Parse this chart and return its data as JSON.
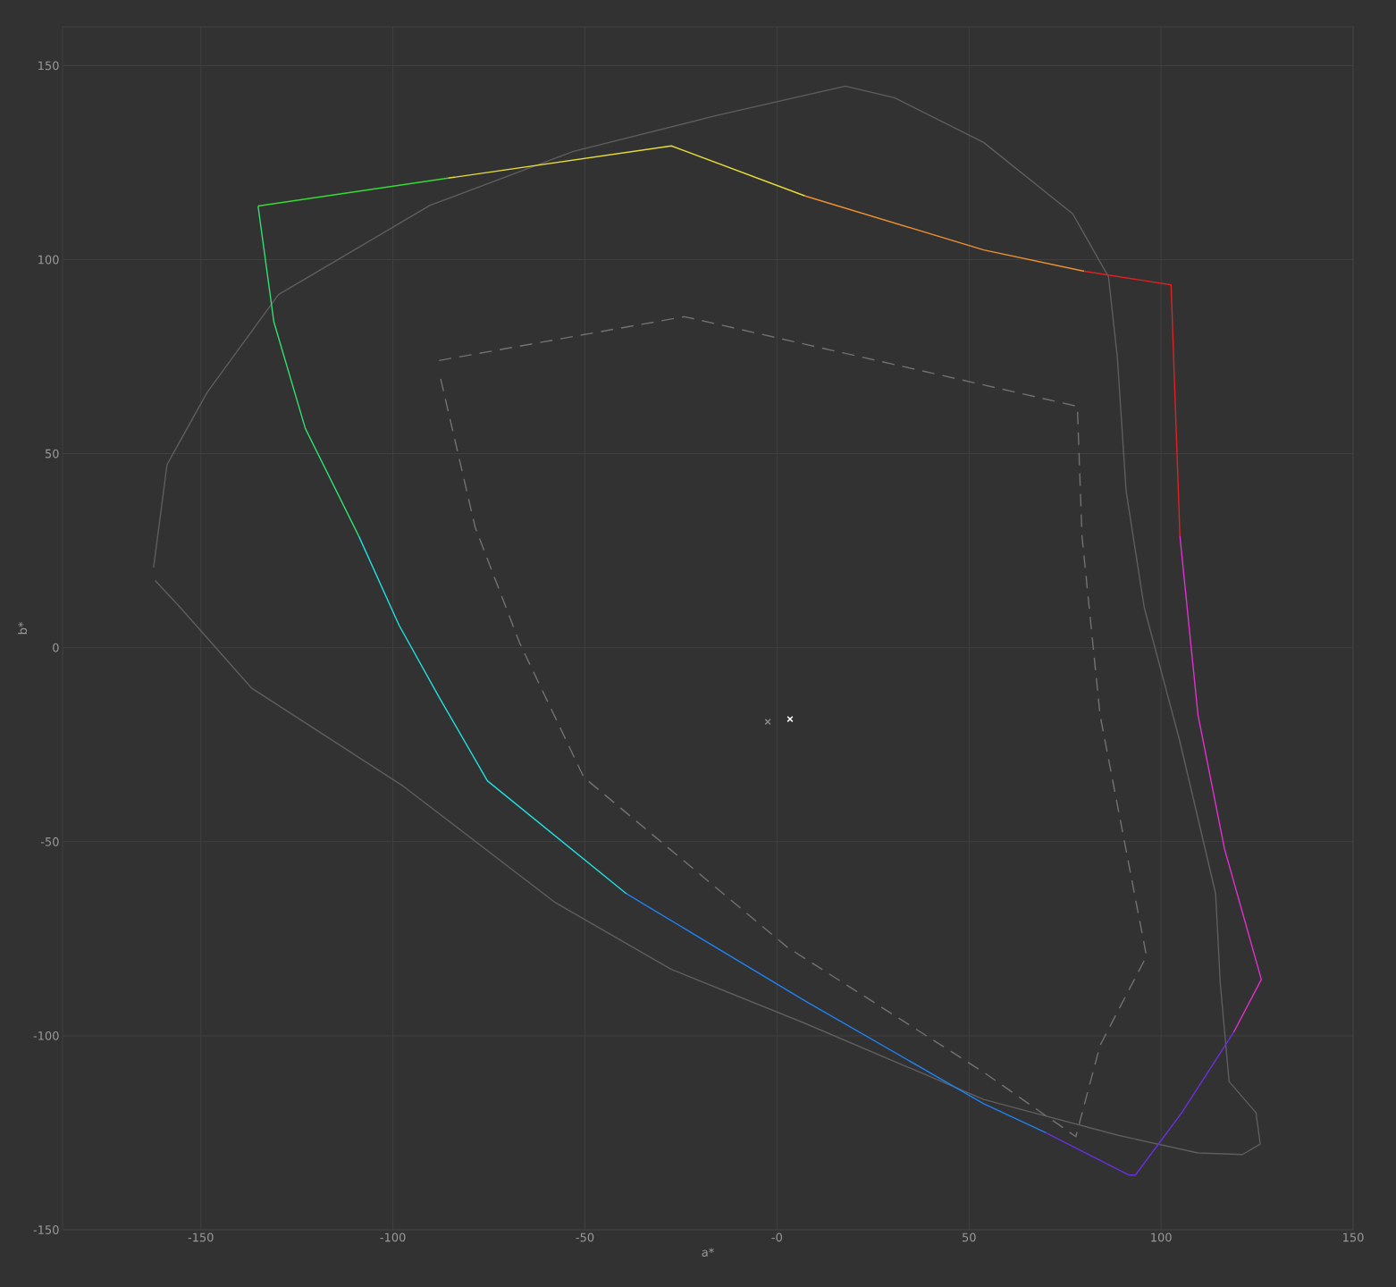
{
  "chart_data": {
    "type": "line",
    "xlabel": "a*",
    "ylabel": "b*",
    "xlim": [
      -186,
      150
    ],
    "ylim": [
      -150,
      160
    ],
    "xticks": [
      -150,
      -100,
      -50,
      {
        "value": 0,
        "label": "-0"
      },
      50,
      100,
      150
    ],
    "yticks": [
      -150,
      -100,
      -50,
      0,
      50,
      100,
      150
    ],
    "grid": true,
    "series": [
      {
        "color": "#5e5e5e",
        "line_style": "solid",
        "marker": "none",
        "x": [
          -162.3,
          -158.8,
          -148.4,
          -129.8,
          -90.3,
          -53,
          -15.9,
          17.8,
          30.6,
          53.8,
          77,
          86.3,
          88.6,
          90.9,
          95.6,
          104.9,
          114.2,
          115.4,
          117.7,
          124.7,
          125.8,
          121.2,
          109.6,
          88.6,
          53.8,
          7.3,
          -27.5,
          -57.7,
          -97.3,
          -136.8,
          -155.4,
          -161.9
        ],
        "values": [
          20.7,
          47.2,
          65.7,
          91,
          114,
          127.9,
          137.1,
          144.7,
          141.7,
          130.2,
          111.8,
          95.6,
          74.9,
          40.3,
          10.4,
          -24.2,
          -63.4,
          -86.4,
          -111.8,
          -119.8,
          -127.9,
          -130.6,
          -130.2,
          -125.6,
          -116.4,
          -96.8,
          -82.9,
          -65.7,
          -35.7,
          -10.4,
          10.4,
          17.3
        ]
      },
      {
        "color": "#727272",
        "line_style": "dashed",
        "marker": "none",
        "x": [
          -88,
          -24.1,
          78.2,
          79.4,
          84.1,
          96.2,
          84.1,
          77.8,
          53.8,
          2.7,
          -50.3,
          -67,
          -78.6,
          -87.8
        ],
        "values": [
          74,
          85.3,
          62.2,
          28.8,
          -17.3,
          -79.5,
          -102.5,
          -126,
          -109.4,
          -77.2,
          -33.4,
          1.2,
          31.1,
          70.3
        ]
      },
      {
        "color": "#33dd33",
        "line_style": "solid",
        "marker": "none",
        "x": [
          -135.1,
          -85.6
        ],
        "values": [
          113.8,
          121
        ]
      },
      {
        "color": "#e6dc3a",
        "line_style": "solid",
        "marker": "none",
        "x": [
          -85.6,
          -27.5,
          7.3
        ],
        "values": [
          121,
          129.3,
          116.4
        ]
      },
      {
        "color": "#f09030",
        "line_style": "solid",
        "marker": "none",
        "x": [
          7.3,
          53.8,
          80
        ],
        "values": [
          116.4,
          102.5,
          97
        ]
      },
      {
        "color": "#dd2222",
        "line_style": "solid",
        "marker": "none",
        "x": [
          80,
          102.6,
          104.9
        ],
        "values": [
          97,
          93.5,
          28.8
        ]
      },
      {
        "color": "#e030d0",
        "line_style": "solid",
        "marker": "none",
        "x": [
          104.9,
          109.6,
          116.5,
          126.1,
          118.9
        ],
        "values": [
          28.8,
          -17.3,
          -51.8,
          -85.5,
          -99.1
        ]
      },
      {
        "color": "#6a30e0",
        "line_style": "solid",
        "marker": "none",
        "x": [
          118.9,
          105.4,
          93.3,
          91.7,
          70
        ],
        "values": [
          -99.1,
          -119.8,
          -135.9,
          -135.9,
          -125
        ]
      },
      {
        "color": "#2080f0",
        "line_style": "solid",
        "marker": "none",
        "x": [
          70,
          53.8,
          7.3,
          -39.2
        ],
        "values": [
          -125,
          -117.5,
          -91,
          -63.4
        ]
      },
      {
        "color": "#22e0e0",
        "line_style": "solid",
        "marker": "none",
        "x": [
          -39.2,
          -75.4,
          -88,
          -98.4,
          -108.9
        ],
        "values": [
          -63.4,
          -34.3,
          -12.7,
          5.8,
          28.8
        ]
      },
      {
        "color": "#30e070",
        "line_style": "solid",
        "marker": "none",
        "x": [
          -108.9,
          -122.8,
          -131,
          -135.1
        ],
        "values": [
          28.8,
          56.5,
          84,
          113.8
        ]
      },
      {
        "type": "scatter",
        "color": "#8a8a8a",
        "marker": "cross",
        "x": [
          -2.4
        ],
        "values": [
          -19.1
        ]
      },
      {
        "type": "scatter",
        "color": "#ffffff",
        "marker": "cross",
        "x": [
          3.4
        ],
        "values": [
          -18.4
        ]
      }
    ]
  }
}
